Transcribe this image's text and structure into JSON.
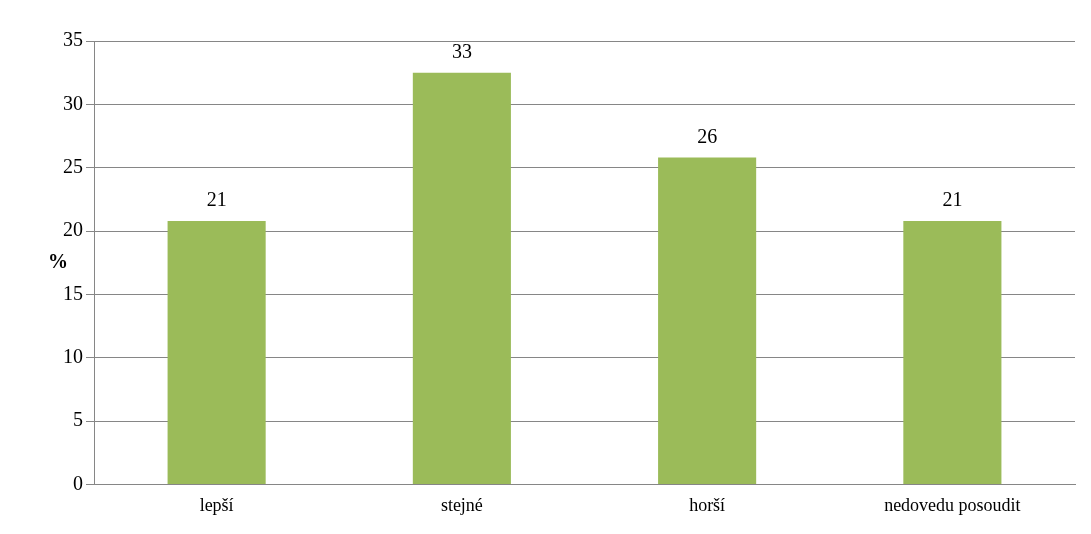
{
  "chart_data": {
    "type": "bar",
    "ylabel": "%",
    "categories": [
      "lepší",
      "stejné",
      "horší",
      "nedovedu posoudit"
    ],
    "values": [
      20.8,
      32.5,
      25.8,
      20.8
    ],
    "value_labels": [
      "21",
      "33",
      "26",
      "21"
    ],
    "color": "#9bbb59",
    "ylim": [
      0,
      35
    ],
    "yticks": [
      0,
      5,
      10,
      15,
      20,
      25,
      30,
      35
    ],
    "grid": "y"
  }
}
